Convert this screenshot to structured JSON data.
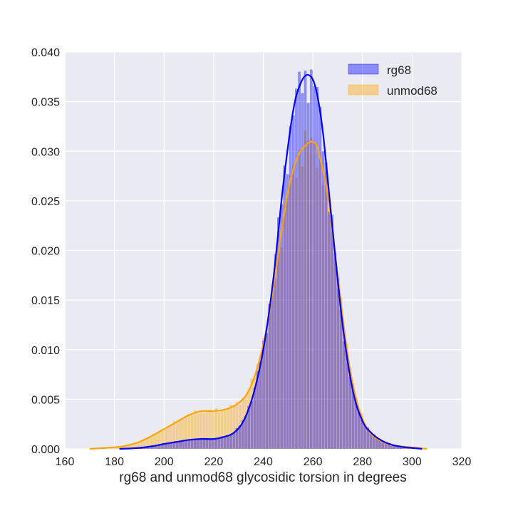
{
  "chart_data": {
    "type": "histogram",
    "title": "",
    "xlabel": "rg68 and unmod68 glycosidic torsion in degrees",
    "ylabel": "",
    "xlim": [
      160,
      320
    ],
    "ylim": [
      0,
      0.04
    ],
    "xticks": [
      "160",
      "180",
      "200",
      "220",
      "240",
      "260",
      "280",
      "300",
      "320"
    ],
    "yticks": [
      "0.000",
      "0.005",
      "0.010",
      "0.015",
      "0.020",
      "0.025",
      "0.030",
      "0.035",
      "0.040"
    ],
    "grid": true,
    "legend_position": "top-right",
    "series": [
      {
        "name": "rg68",
        "color": "#0000ff",
        "kde": {
          "x": [
            182,
            190,
            196,
            200,
            205,
            210,
            215,
            220,
            224,
            228,
            232,
            236,
            240,
            244,
            248,
            252,
            255,
            258,
            261,
            264,
            268,
            272,
            276,
            280,
            284,
            288,
            292,
            296,
            300,
            304
          ],
          "y": [
            0.0,
            0.0001,
            0.0003,
            0.0005,
            0.0007,
            0.0009,
            0.001,
            0.001,
            0.0012,
            0.0016,
            0.0028,
            0.0055,
            0.01,
            0.017,
            0.0265,
            0.034,
            0.0368,
            0.0377,
            0.0365,
            0.032,
            0.022,
            0.0125,
            0.006,
            0.0028,
            0.0015,
            0.0008,
            0.0004,
            0.0002,
            0.0001,
            0.0
          ]
        }
      },
      {
        "name": "unmod68",
        "color": "#ffa500",
        "kde": {
          "x": [
            170,
            176,
            182,
            186,
            190,
            195,
            200,
            205,
            210,
            215,
            220,
            225,
            230,
            234,
            238,
            242,
            246,
            250,
            254,
            258,
            260,
            262,
            266,
            270,
            274,
            278,
            282,
            286,
            290,
            294,
            298,
            302,
            306
          ],
          "y": [
            0.0,
            0.0001,
            0.0002,
            0.0004,
            0.0007,
            0.0013,
            0.002,
            0.0027,
            0.0034,
            0.0038,
            0.0038,
            0.004,
            0.0046,
            0.0058,
            0.0085,
            0.013,
            0.0195,
            0.026,
            0.0295,
            0.0308,
            0.0309,
            0.0302,
            0.0255,
            0.0175,
            0.0095,
            0.0045,
            0.002,
            0.001,
            0.0005,
            0.0003,
            0.0002,
            0.0001,
            0.0
          ]
        }
      }
    ]
  }
}
